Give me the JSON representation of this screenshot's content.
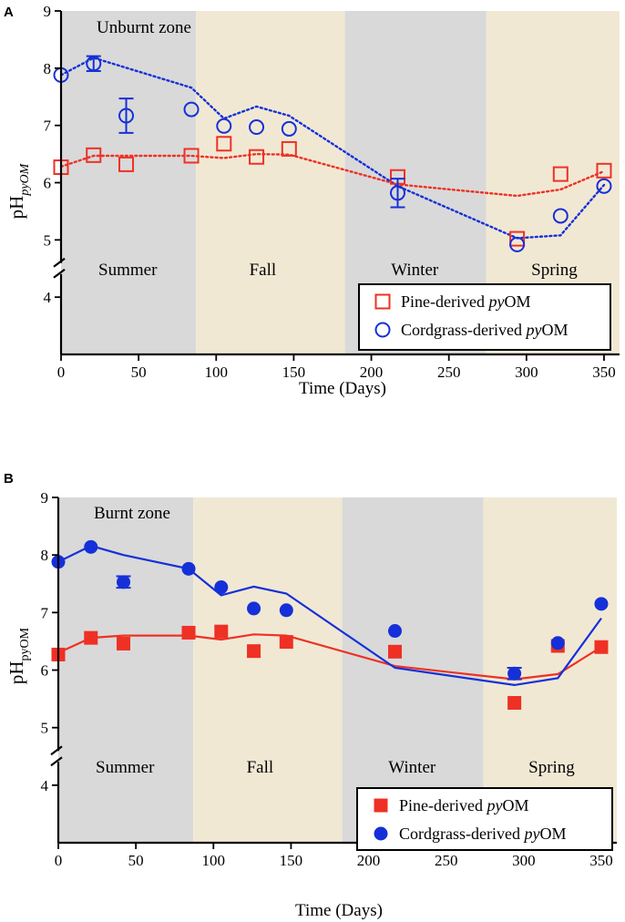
{
  "colors": {
    "summer_bg": "#d9d9d9",
    "fall_bg": "#f1e8d4",
    "winter_bg": "#d9d9d9",
    "spring_bg": "#f1e8d4",
    "pine": "#ee3124",
    "cordgrass": "#1530d8"
  },
  "chart_data": [
    {
      "panel": "A",
      "type": "scatter",
      "zone_label": "Unburnt zone",
      "xlabel": "Time (Days)",
      "ylabel_main": "pH",
      "ylabel_sub": "pyOM",
      "xlim": [
        0,
        360
      ],
      "ylim": [
        3.0,
        9.0
      ],
      "xticks": [
        0,
        50,
        100,
        150,
        200,
        250,
        300,
        350
      ],
      "yticks": [
        4,
        5,
        6,
        7,
        8,
        9
      ],
      "axis_break_at": 4.5,
      "seasons": [
        {
          "name": "Summer",
          "start": 0,
          "end": 87,
          "label_x": 43
        },
        {
          "name": "Fall",
          "start": 87,
          "end": 183,
          "label_x": 130
        },
        {
          "name": "Winter",
          "start": 183,
          "end": 274,
          "label_x": 228
        },
        {
          "name": "Spring",
          "start": 274,
          "end": 360,
          "label_x": 318
        }
      ],
      "marker_style": "open",
      "line_style": "dotted",
      "legend": [
        {
          "series": "pine",
          "label": "Pine-derived ",
          "label_italic": "py",
          "label_end": "OM"
        },
        {
          "series": "cordgrass",
          "label": "Cordgrass-derived ",
          "label_italic": "py",
          "label_end": "OM"
        }
      ],
      "series": [
        {
          "name": "Pine-derived pyOM",
          "key": "pine",
          "points": [
            {
              "x": 0,
              "y": 6.27
            },
            {
              "x": 21,
              "y": 6.48
            },
            {
              "x": 42,
              "y": 6.32
            },
            {
              "x": 84,
              "y": 6.47
            },
            {
              "x": 105,
              "y": 6.68
            },
            {
              "x": 126,
              "y": 6.45
            },
            {
              "x": 147,
              "y": 6.59
            },
            {
              "x": 217,
              "y": 6.1
            },
            {
              "x": 294,
              "y": 5.02
            },
            {
              "x": 322,
              "y": 6.15
            },
            {
              "x": 350,
              "y": 6.21
            }
          ],
          "trend": [
            {
              "x": 0,
              "y": 6.28
            },
            {
              "x": 21,
              "y": 6.47
            },
            {
              "x": 84,
              "y": 6.47
            },
            {
              "x": 105,
              "y": 6.43
            },
            {
              "x": 126,
              "y": 6.5
            },
            {
              "x": 147,
              "y": 6.49
            },
            {
              "x": 217,
              "y": 5.97
            },
            {
              "x": 294,
              "y": 5.77
            },
            {
              "x": 322,
              "y": 5.88
            },
            {
              "x": 350,
              "y": 6.2
            }
          ]
        },
        {
          "name": "Cordgrass-derived pyOM",
          "key": "cordgrass",
          "points": [
            {
              "x": 0,
              "y": 7.88
            },
            {
              "x": 21,
              "y": 8.08,
              "err": 0.13
            },
            {
              "x": 42,
              "y": 7.17,
              "err": 0.3
            },
            {
              "x": 84,
              "y": 7.28
            },
            {
              "x": 105,
              "y": 6.99
            },
            {
              "x": 126,
              "y": 6.97
            },
            {
              "x": 147,
              "y": 6.94
            },
            {
              "x": 217,
              "y": 5.82,
              "err": 0.25
            },
            {
              "x": 294,
              "y": 4.92
            },
            {
              "x": 322,
              "y": 5.42
            },
            {
              "x": 350,
              "y": 5.94
            }
          ],
          "trend": [
            {
              "x": 0,
              "y": 7.88
            },
            {
              "x": 21,
              "y": 8.18
            },
            {
              "x": 84,
              "y": 7.66
            },
            {
              "x": 105,
              "y": 7.12
            },
            {
              "x": 126,
              "y": 7.33
            },
            {
              "x": 147,
              "y": 7.17
            },
            {
              "x": 217,
              "y": 5.94
            },
            {
              "x": 294,
              "y": 5.03
            },
            {
              "x": 322,
              "y": 5.08
            },
            {
              "x": 350,
              "y": 5.96
            }
          ]
        }
      ]
    },
    {
      "panel": "B",
      "type": "scatter",
      "zone_label": "Burnt zone",
      "xlabel": "Time (Days)",
      "ylabel_main": "pH",
      "ylabel_sub": "pyOM",
      "xlim": [
        0,
        360
      ],
      "ylim": [
        3.0,
        9.0
      ],
      "xticks": [
        0,
        50,
        100,
        150,
        200,
        250,
        300,
        350
      ],
      "yticks": [
        4,
        5,
        6,
        7,
        8,
        9
      ],
      "axis_break_at": 4.5,
      "seasons": [
        {
          "name": "Summer",
          "start": 0,
          "end": 87,
          "label_x": 43
        },
        {
          "name": "Fall",
          "start": 87,
          "end": 183,
          "label_x": 130
        },
        {
          "name": "Winter",
          "start": 183,
          "end": 274,
          "label_x": 228
        },
        {
          "name": "Spring",
          "start": 274,
          "end": 360,
          "label_x": 318
        }
      ],
      "marker_style": "filled",
      "line_style": "solid",
      "legend": [
        {
          "series": "pine",
          "label": "Pine-derived ",
          "label_italic": "py",
          "label_end": "OM"
        },
        {
          "series": "cordgrass",
          "label": "Cordgrass-derived ",
          "label_italic": "py",
          "label_end": "OM"
        }
      ],
      "series": [
        {
          "name": "Pine-derived pyOM",
          "key": "pine",
          "points": [
            {
              "x": 0,
              "y": 6.27
            },
            {
              "x": 21,
              "y": 6.56
            },
            {
              "x": 42,
              "y": 6.46
            },
            {
              "x": 84,
              "y": 6.65
            },
            {
              "x": 105,
              "y": 6.67
            },
            {
              "x": 126,
              "y": 6.33
            },
            {
              "x": 147,
              "y": 6.49
            },
            {
              "x": 217,
              "y": 6.32
            },
            {
              "x": 294,
              "y": 5.43
            },
            {
              "x": 322,
              "y": 6.42
            },
            {
              "x": 350,
              "y": 6.4
            }
          ],
          "trend": [
            {
              "x": 0,
              "y": 6.3
            },
            {
              "x": 21,
              "y": 6.56
            },
            {
              "x": 42,
              "y": 6.6
            },
            {
              "x": 84,
              "y": 6.6
            },
            {
              "x": 105,
              "y": 6.53
            },
            {
              "x": 126,
              "y": 6.62
            },
            {
              "x": 147,
              "y": 6.6
            },
            {
              "x": 217,
              "y": 6.07
            },
            {
              "x": 294,
              "y": 5.84
            },
            {
              "x": 322,
              "y": 5.93
            },
            {
              "x": 350,
              "y": 6.4
            }
          ]
        },
        {
          "name": "Cordgrass-derived pyOM",
          "key": "cordgrass",
          "points": [
            {
              "x": 0,
              "y": 7.88
            },
            {
              "x": 21,
              "y": 8.14
            },
            {
              "x": 42,
              "y": 7.53,
              "err": 0.1
            },
            {
              "x": 84,
              "y": 7.76
            },
            {
              "x": 105,
              "y": 7.44
            },
            {
              "x": 126,
              "y": 7.07
            },
            {
              "x": 147,
              "y": 7.04
            },
            {
              "x": 217,
              "y": 6.68
            },
            {
              "x": 294,
              "y": 5.94,
              "err": 0.1
            },
            {
              "x": 322,
              "y": 6.47
            },
            {
              "x": 350,
              "y": 7.15
            }
          ],
          "trend": [
            {
              "x": 0,
              "y": 7.88
            },
            {
              "x": 21,
              "y": 8.16
            },
            {
              "x": 42,
              "y": 8.0
            },
            {
              "x": 84,
              "y": 7.76
            },
            {
              "x": 105,
              "y": 7.3
            },
            {
              "x": 126,
              "y": 7.45
            },
            {
              "x": 147,
              "y": 7.33
            },
            {
              "x": 217,
              "y": 6.04
            },
            {
              "x": 294,
              "y": 5.74
            },
            {
              "x": 322,
              "y": 5.86
            },
            {
              "x": 350,
              "y": 6.9
            }
          ]
        }
      ]
    }
  ]
}
